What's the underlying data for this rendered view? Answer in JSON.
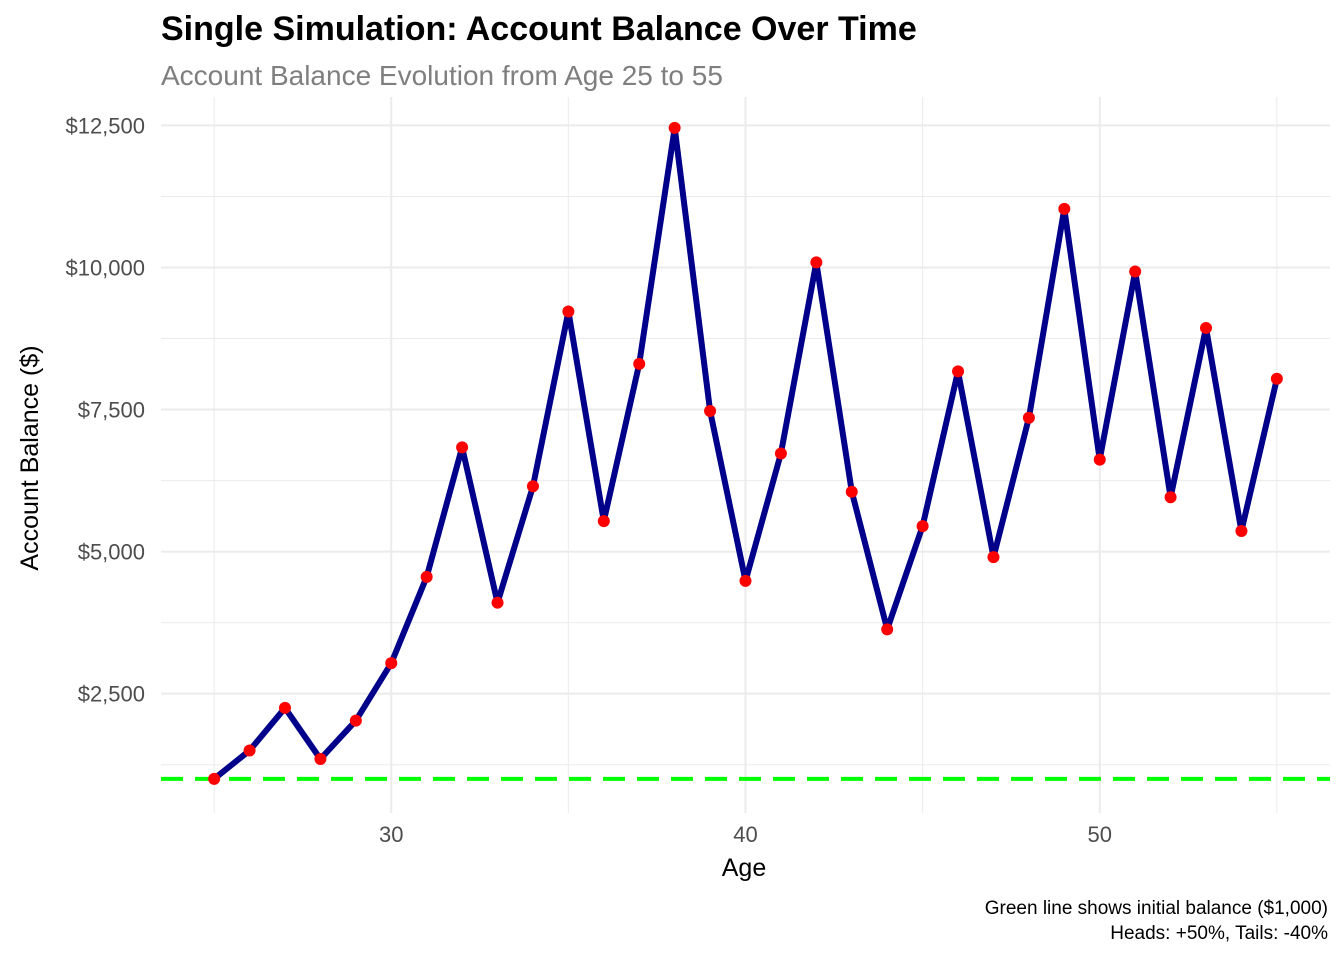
{
  "chart_data": {
    "type": "line",
    "title": "Single Simulation: Account Balance Over Time",
    "subtitle": "Account Balance Evolution from Age 25 to 55",
    "xlabel": "Age",
    "ylabel": "Account Balance ($)",
    "caption_lines": [
      "Green line shows initial balance ($1,000)",
      "Heads: +50%, Tails: -40%"
    ],
    "xlim": [
      23.5,
      56.5
    ],
    "ylim": [
      400,
      13000
    ],
    "x_ticks": [
      30,
      40,
      50
    ],
    "x_tick_labels": [
      "30",
      "40",
      "50"
    ],
    "y_ticks": [
      2500,
      5000,
      7500,
      10000,
      12500
    ],
    "y_tick_labels": [
      "$2,500",
      "$5,000",
      "$7,500",
      "$10,000",
      "$12,500"
    ],
    "grid": true,
    "series": [
      {
        "x": [
          25,
          26,
          27,
          28,
          29,
          30,
          31,
          32,
          33,
          34,
          35,
          36,
          37,
          38,
          39,
          40,
          41,
          42,
          43,
          44,
          45,
          46,
          47,
          48,
          49,
          50,
          51,
          52,
          53,
          54,
          55
        ],
        "values": [
          1000,
          1500,
          2250,
          1350,
          2025,
          3038,
          4556,
          6834,
          4101,
          6151,
          9226,
          5536,
          8304,
          12456,
          7474,
          4484,
          6726,
          10089,
          6054,
          3632,
          5448,
          8172,
          4903,
          7355,
          11032,
          6619,
          9929,
          5957,
          8936,
          5362,
          8042
        ]
      }
    ],
    "reference_line": {
      "y": 1000
    },
    "colors": {
      "line": "#00008b",
      "points": "#ff0000",
      "reference": "#00ff00",
      "grid": "#ebebeb"
    }
  }
}
